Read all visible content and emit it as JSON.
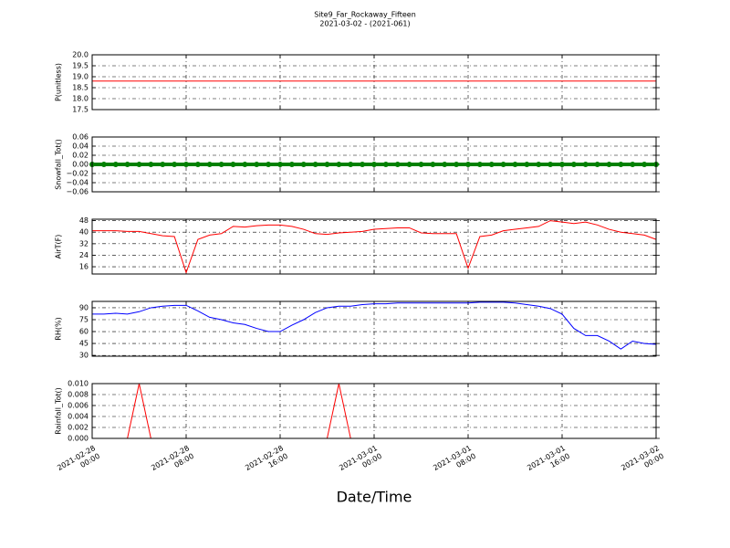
{
  "chart_data": [
    {
      "type": "line",
      "title": "Site9_Far_Rockaway_Fifteen",
      "subtitle": "2021-03-02 - (2021-061)",
      "ylabel": "P(unitless)",
      "ylim": [
        17.5,
        20
      ],
      "yticks": [
        17.5,
        {
          "value": 18,
          "label": "18.0"
        },
        18.5,
        {
          "value": 19,
          "label": "19.0"
        },
        19.5,
        {
          "value": 20,
          "label": "20.0"
        }
      ],
      "grid": true,
      "x": [
        "2021-02-28 00:00",
        "2021-02-28 01:00",
        "2021-02-28 02:00",
        "2021-02-28 03:00",
        "2021-02-28 04:00",
        "2021-02-28 05:00",
        "2021-02-28 06:00",
        "2021-02-28 07:00",
        "2021-02-28 08:00",
        "2021-02-28 09:00",
        "2021-02-28 10:00",
        "2021-02-28 11:00",
        "2021-02-28 12:00",
        "2021-02-28 13:00",
        "2021-02-28 14:00",
        "2021-02-28 15:00",
        "2021-02-28 16:00",
        "2021-02-28 17:00",
        "2021-02-28 18:00",
        "2021-02-28 19:00",
        "2021-02-28 20:00",
        "2021-02-28 21:00",
        "2021-02-28 22:00",
        "2021-02-28 23:00",
        "2021-03-01 00:00",
        "2021-03-01 01:00",
        "2021-03-01 02:00",
        "2021-03-01 03:00",
        "2021-03-01 04:00",
        "2021-03-01 05:00",
        "2021-03-01 06:00",
        "2021-03-01 07:00",
        "2021-03-01 08:00",
        "2021-03-01 09:00",
        "2021-03-01 10:00",
        "2021-03-01 11:00",
        "2021-03-01 12:00",
        "2021-03-01 13:00",
        "2021-03-01 14:00",
        "2021-03-01 15:00",
        "2021-03-01 16:00",
        "2021-03-01 17:00",
        "2021-03-01 18:00",
        "2021-03-01 19:00",
        "2021-03-01 20:00",
        "2021-03-01 21:00",
        "2021-03-01 22:00",
        "2021-03-01 23:00",
        "2021-03-02 00:00"
      ],
      "series": [
        {
          "color": "#ff0000",
          "values": [
            18.8,
            18.8,
            18.8,
            18.8,
            18.8,
            18.8,
            18.8,
            18.8,
            18.8,
            18.8,
            18.8,
            18.8,
            18.8,
            18.8,
            18.8,
            18.8,
            18.8,
            18.8,
            18.8,
            18.8,
            18.8,
            18.8,
            18.8,
            18.8,
            18.8,
            18.8,
            18.8,
            18.8,
            18.8,
            18.8,
            18.8,
            18.8,
            18.8,
            18.8,
            18.8,
            18.8,
            18.8,
            18.8,
            18.8,
            18.8,
            18.8,
            18.8,
            18.8,
            18.8,
            18.8,
            18.8,
            18.8,
            18.8,
            18.8
          ]
        }
      ]
    },
    {
      "type": "line",
      "ylabel": "Snowfall_Tot()",
      "markers": true,
      "ylim": [
        -0.06,
        0.06
      ],
      "yticks": [
        {
          "value": -0.06,
          "label": "−0.06"
        },
        {
          "value": -0.04,
          "label": "−0.04"
        },
        {
          "value": -0.02,
          "label": "−0.02"
        },
        {
          "value": 0,
          "label": "0.00"
        },
        {
          "value": 0.02,
          "label": "0.02"
        },
        {
          "value": 0.04,
          "label": "0.04"
        },
        {
          "value": 0.06,
          "label": "0.06"
        }
      ],
      "grid": true,
      "x": [
        "2021-02-28 00:00",
        "2021-02-28 01:00",
        "2021-02-28 02:00",
        "2021-02-28 03:00",
        "2021-02-28 04:00",
        "2021-02-28 05:00",
        "2021-02-28 06:00",
        "2021-02-28 07:00",
        "2021-02-28 08:00",
        "2021-02-28 09:00",
        "2021-02-28 10:00",
        "2021-02-28 11:00",
        "2021-02-28 12:00",
        "2021-02-28 13:00",
        "2021-02-28 14:00",
        "2021-02-28 15:00",
        "2021-02-28 16:00",
        "2021-02-28 17:00",
        "2021-02-28 18:00",
        "2021-02-28 19:00",
        "2021-02-28 20:00",
        "2021-02-28 21:00",
        "2021-02-28 22:00",
        "2021-02-28 23:00",
        "2021-03-01 00:00",
        "2021-03-01 01:00",
        "2021-03-01 02:00",
        "2021-03-01 03:00",
        "2021-03-01 04:00",
        "2021-03-01 05:00",
        "2021-03-01 06:00",
        "2021-03-01 07:00",
        "2021-03-01 08:00",
        "2021-03-01 09:00",
        "2021-03-01 10:00",
        "2021-03-01 11:00",
        "2021-03-01 12:00",
        "2021-03-01 13:00",
        "2021-03-01 14:00",
        "2021-03-01 15:00",
        "2021-03-01 16:00",
        "2021-03-01 17:00",
        "2021-03-01 18:00",
        "2021-03-01 19:00",
        "2021-03-01 20:00",
        "2021-03-01 21:00",
        "2021-03-01 22:00",
        "2021-03-01 23:00",
        "2021-03-02 00:00"
      ],
      "series": [
        {
          "color": "#008000",
          "values": [
            0,
            0,
            0,
            0,
            0,
            0,
            0,
            0,
            0,
            0,
            0,
            0,
            0,
            0,
            0,
            0,
            0,
            0,
            0,
            0,
            0,
            0,
            0,
            0,
            0,
            0,
            0,
            0,
            0,
            0,
            0,
            0,
            0,
            0,
            0,
            0,
            0,
            0,
            0,
            0,
            0,
            0,
            0,
            0,
            0,
            0,
            0,
            0,
            0
          ]
        }
      ]
    },
    {
      "type": "line",
      "ylabel": "AirT(F)",
      "ylim": [
        11,
        49
      ],
      "yticks": [
        16,
        24,
        32,
        40,
        48
      ],
      "grid": true,
      "x": [
        "2021-02-28 00:00",
        "2021-02-28 01:00",
        "2021-02-28 02:00",
        "2021-02-28 03:00",
        "2021-02-28 04:00",
        "2021-02-28 05:00",
        "2021-02-28 06:00",
        "2021-02-28 07:00",
        "2021-02-28 08:00",
        "2021-02-28 09:00",
        "2021-02-28 10:00",
        "2021-02-28 11:00",
        "2021-02-28 12:00",
        "2021-02-28 13:00",
        "2021-02-28 14:00",
        "2021-02-28 15:00",
        "2021-02-28 16:00",
        "2021-02-28 17:00",
        "2021-02-28 18:00",
        "2021-02-28 19:00",
        "2021-02-28 20:00",
        "2021-02-28 21:00",
        "2021-02-28 22:00",
        "2021-02-28 23:00",
        "2021-03-01 00:00",
        "2021-03-01 01:00",
        "2021-03-01 02:00",
        "2021-03-01 03:00",
        "2021-03-01 04:00",
        "2021-03-01 05:00",
        "2021-03-01 06:00",
        "2021-03-01 07:00",
        "2021-03-01 08:00",
        "2021-03-01 09:00",
        "2021-03-01 10:00",
        "2021-03-01 11:00",
        "2021-03-01 12:00",
        "2021-03-01 13:00",
        "2021-03-01 14:00",
        "2021-03-01 15:00",
        "2021-03-01 16:00",
        "2021-03-01 17:00",
        "2021-03-01 18:00",
        "2021-03-01 19:00",
        "2021-03-01 20:00",
        "2021-03-01 21:00",
        "2021-03-01 22:00",
        "2021-03-01 23:00",
        "2021-03-02 00:00"
      ],
      "series": [
        {
          "color": "#ff0000",
          "values": [
            41,
            41,
            41,
            40.5,
            40.5,
            39,
            37.5,
            37,
            12,
            35,
            38,
            39,
            44,
            43.5,
            44.5,
            45,
            45,
            44,
            42,
            39,
            38.5,
            39.5,
            40,
            40.5,
            42,
            42.5,
            43,
            43,
            39.5,
            39,
            39,
            39,
            15,
            37,
            38,
            41,
            42,
            43,
            44,
            48,
            47,
            46,
            47,
            45,
            42,
            40,
            39,
            38,
            35
          ]
        }
      ]
    },
    {
      "type": "line",
      "ylabel": "RH(%)",
      "ylim": [
        29,
        98
      ],
      "yticks": [
        30,
        45,
        60,
        75,
        90
      ],
      "grid": true,
      "x": [
        "2021-02-28 00:00",
        "2021-02-28 01:00",
        "2021-02-28 02:00",
        "2021-02-28 03:00",
        "2021-02-28 04:00",
        "2021-02-28 05:00",
        "2021-02-28 06:00",
        "2021-02-28 07:00",
        "2021-02-28 08:00",
        "2021-02-28 09:00",
        "2021-02-28 10:00",
        "2021-02-28 11:00",
        "2021-02-28 12:00",
        "2021-02-28 13:00",
        "2021-02-28 14:00",
        "2021-02-28 15:00",
        "2021-02-28 16:00",
        "2021-02-28 17:00",
        "2021-02-28 18:00",
        "2021-02-28 19:00",
        "2021-02-28 20:00",
        "2021-02-28 21:00",
        "2021-02-28 22:00",
        "2021-02-28 23:00",
        "2021-03-01 00:00",
        "2021-03-01 01:00",
        "2021-03-01 02:00",
        "2021-03-01 03:00",
        "2021-03-01 04:00",
        "2021-03-01 05:00",
        "2021-03-01 06:00",
        "2021-03-01 07:00",
        "2021-03-01 08:00",
        "2021-03-01 09:00",
        "2021-03-01 10:00",
        "2021-03-01 11:00",
        "2021-03-01 12:00",
        "2021-03-01 13:00",
        "2021-03-01 14:00",
        "2021-03-01 15:00",
        "2021-03-01 16:00",
        "2021-03-01 17:00",
        "2021-03-01 18:00",
        "2021-03-01 19:00",
        "2021-03-01 20:00",
        "2021-03-01 21:00",
        "2021-03-01 22:00",
        "2021-03-01 23:00",
        "2021-03-02 00:00"
      ],
      "series": [
        {
          "color": "#0000ff",
          "values": [
            82,
            82,
            83,
            82,
            85,
            90,
            92,
            93,
            93,
            86,
            78,
            75,
            71,
            69,
            64,
            60,
            60,
            68,
            75,
            84,
            90,
            92,
            92,
            94,
            95,
            95,
            96,
            96,
            96,
            96,
            96,
            96,
            96,
            97,
            97,
            97,
            96,
            94,
            92,
            89,
            82,
            64,
            55,
            55,
            48,
            38,
            48,
            45,
            44
          ]
        }
      ]
    },
    {
      "type": "line",
      "ylabel": "Rainfall_Tot()",
      "xlabel": "Date/Time",
      "ylim": [
        0,
        0.01
      ],
      "yticks": [
        {
          "value": 0,
          "label": "0.000"
        },
        {
          "value": 0.002,
          "label": "0.002"
        },
        {
          "value": 0.004,
          "label": "0.004"
        },
        {
          "value": 0.006,
          "label": "0.006"
        },
        {
          "value": 0.008,
          "label": "0.008"
        },
        {
          "value": 0.01,
          "label": "0.010"
        }
      ],
      "grid": true,
      "xlim": [
        "2021-02-28 00:00",
        "2021-03-02 00:00"
      ],
      "xticks": [
        {
          "value": "2021-02-28 00:00",
          "label": "2021-02-28\n00:00"
        },
        {
          "value": "2021-02-28 08:00",
          "label": "2021-02-28\n08:00"
        },
        {
          "value": "2021-02-28 16:00",
          "label": "2021-02-28\n16:00"
        },
        {
          "value": "2021-03-01 00:00",
          "label": "2021-03-01\n00:00"
        },
        {
          "value": "2021-03-01 08:00",
          "label": "2021-03-01\n08:00"
        },
        {
          "value": "2021-03-01 16:00",
          "label": "2021-03-01\n16:00"
        },
        {
          "value": "2021-03-02 00:00",
          "label": "2021-03-02\n00:00"
        }
      ],
      "x": [
        "2021-02-28 00:00",
        "2021-02-28 01:00",
        "2021-02-28 02:00",
        "2021-02-28 03:00",
        "2021-02-28 04:00",
        "2021-02-28 05:00",
        "2021-02-28 06:00",
        "2021-02-28 07:00",
        "2021-02-28 08:00",
        "2021-02-28 09:00",
        "2021-02-28 10:00",
        "2021-02-28 11:00",
        "2021-02-28 12:00",
        "2021-02-28 13:00",
        "2021-02-28 14:00",
        "2021-02-28 15:00",
        "2021-02-28 16:00",
        "2021-02-28 17:00",
        "2021-02-28 18:00",
        "2021-02-28 19:00",
        "2021-02-28 20:00",
        "2021-02-28 21:00",
        "2021-02-28 22:00",
        "2021-02-28 23:00",
        "2021-03-01 00:00",
        "2021-03-01 01:00",
        "2021-03-01 02:00",
        "2021-03-01 03:00",
        "2021-03-01 04:00",
        "2021-03-01 05:00",
        "2021-03-01 06:00",
        "2021-03-01 07:00",
        "2021-03-01 08:00",
        "2021-03-01 09:00",
        "2021-03-01 10:00",
        "2021-03-01 11:00",
        "2021-03-01 12:00",
        "2021-03-01 13:00",
        "2021-03-01 14:00",
        "2021-03-01 15:00",
        "2021-03-01 16:00",
        "2021-03-01 17:00",
        "2021-03-01 18:00",
        "2021-03-01 19:00",
        "2021-03-01 20:00",
        "2021-03-01 21:00",
        "2021-03-01 22:00",
        "2021-03-01 23:00",
        "2021-03-02 00:00"
      ],
      "series": [
        {
          "color": "#ff0000",
          "values": [
            0,
            0,
            0,
            0,
            0.01,
            0,
            0,
            0,
            0,
            0,
            0,
            0,
            0,
            0,
            0,
            0,
            0,
            0,
            0,
            0,
            0,
            0.01,
            0,
            0,
            0,
            0,
            0,
            0,
            0,
            0,
            0,
            0,
            0,
            0,
            0,
            0,
            0,
            0,
            0,
            0,
            0,
            0,
            0,
            0,
            0,
            0,
            0,
            0,
            0
          ]
        }
      ]
    }
  ]
}
